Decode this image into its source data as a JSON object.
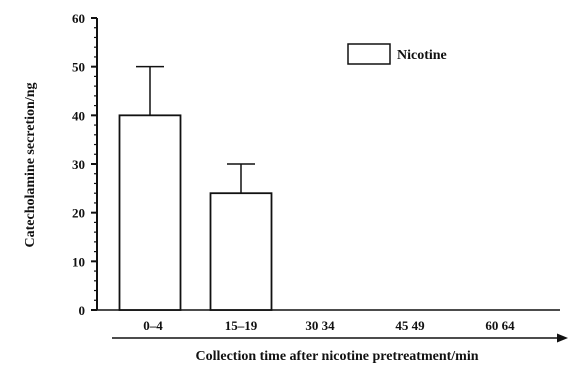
{
  "chart_data": {
    "type": "bar",
    "categories": [
      "0–4",
      "15–19",
      "30  34",
      "45  49",
      "60  64"
    ],
    "series": [
      {
        "name": "Nicotine",
        "values": [
          40,
          24,
          0,
          0,
          0
        ],
        "error": [
          10,
          6,
          0,
          0,
          0
        ]
      }
    ],
    "xlabel": "Collection time after nicotine pretreatment/min",
    "ylabel": "Catecholamine secretion/ng",
    "ylim": [
      0,
      60
    ],
    "yticks": [
      0,
      10,
      20,
      30,
      40,
      50,
      60
    ],
    "grid": false,
    "legend_position": "top-right",
    "colors": {
      "bar_fill": "#ffffff",
      "stroke": "#111111"
    }
  }
}
